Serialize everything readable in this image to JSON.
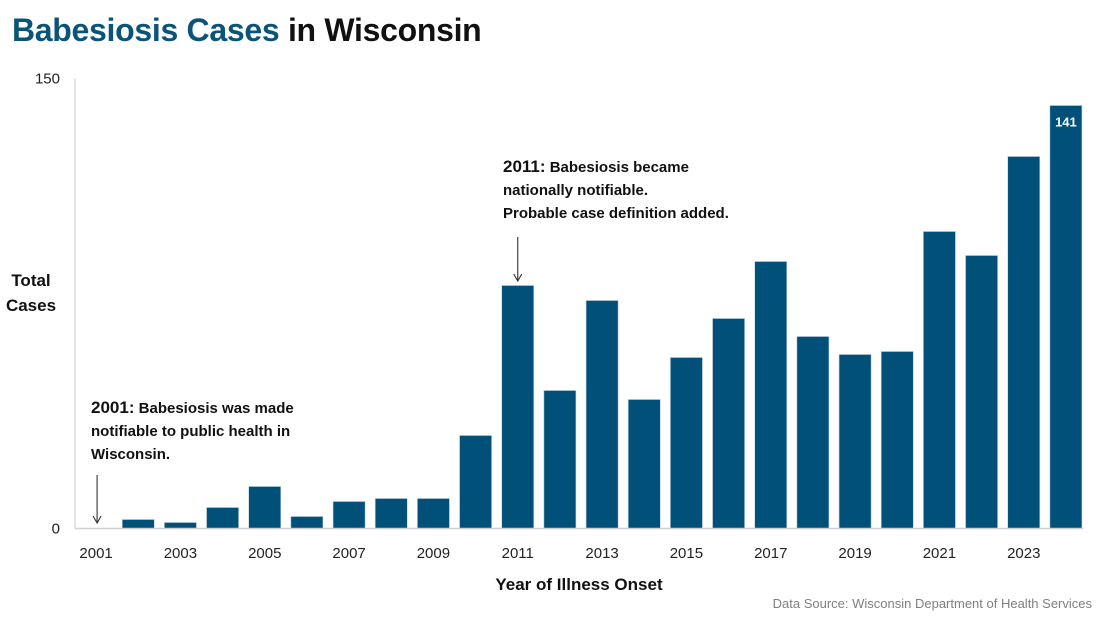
{
  "title": {
    "accent": "Babesiosis Cases",
    "rest": " in Wisconsin"
  },
  "source": "Data Source: Wisconsin Department of Health Services",
  "colors": {
    "bar": "#00507a",
    "title_accent": "#0b5479",
    "axis": "#d0d0d0"
  },
  "chart_data": {
    "type": "bar",
    "title": "Babesiosis Cases in Wisconsin",
    "xlabel": "Year of Illness Onset",
    "ylabel": "Total Cases",
    "ylabel_lines": [
      "Total",
      "Cases"
    ],
    "ylim": [
      0,
      150
    ],
    "yticks": [
      0,
      150
    ],
    "grid": false,
    "categories": [
      "2001",
      "2002",
      "2003",
      "2004",
      "2005",
      "2006",
      "2007",
      "2008",
      "2009",
      "2010",
      "2011",
      "2012",
      "2013",
      "2014",
      "2015",
      "2016",
      "2017",
      "2018",
      "2019",
      "2020",
      "2021",
      "2022",
      "2023",
      "2024"
    ],
    "xtick_labels": [
      "2001",
      "2003",
      "2005",
      "2007",
      "2009",
      "2011",
      "2013",
      "2015",
      "2017",
      "2019",
      "2021",
      "2023"
    ],
    "values": [
      0,
      3,
      2,
      7,
      14,
      4,
      9,
      10,
      10,
      31,
      81,
      46,
      76,
      43,
      57,
      70,
      89,
      64,
      58,
      59,
      99,
      91,
      124,
      141
    ],
    "data_labels": [
      {
        "category": "2024",
        "text": "141"
      }
    ],
    "annotations": [
      {
        "category": "2001",
        "year": "2001:",
        "lines": [
          " Babesiosis was made",
          "notifiable to public health in",
          "Wisconsin."
        ]
      },
      {
        "category": "2011",
        "year": "2011:",
        "lines": [
          " Babesiosis became",
          "nationally notifiable.",
          "Probable case definition added."
        ]
      }
    ]
  }
}
